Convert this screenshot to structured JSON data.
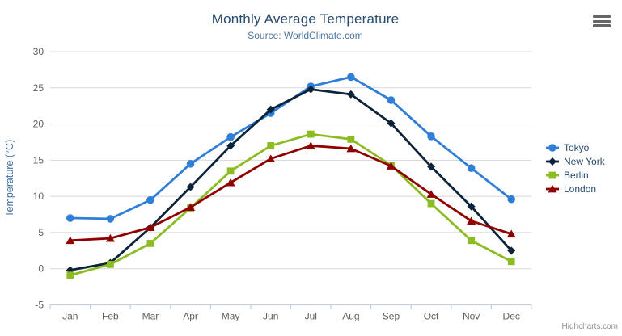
{
  "chart": {
    "credit": "Highcharts.com",
    "export_menu_icon": "hamburger-icon",
    "colors": {
      "grid": "#d8d8d8",
      "axis_line": "#c0d0e0",
      "tick_label": "#606060",
      "title": "#274b6d",
      "subtitle": "#4d759e",
      "y_axis_title": "#4572a7",
      "legend_text": "#274b6d",
      "credit_text": "#909090"
    }
  },
  "chart_data": {
    "type": "line",
    "title": "Monthly Average Temperature",
    "subtitle": "Source: WorldClimate.com",
    "xlabel": "",
    "ylabel": "Temperature (°C)",
    "categories": [
      "Jan",
      "Feb",
      "Mar",
      "Apr",
      "May",
      "Jun",
      "Jul",
      "Aug",
      "Sep",
      "Oct",
      "Nov",
      "Dec"
    ],
    "ylim": [
      -5,
      30
    ],
    "ytick_interval": 5,
    "grid": true,
    "legend_position": "right",
    "series": [
      {
        "name": "Tokyo",
        "color": "#2f7ed8",
        "marker": "circle",
        "values": [
          7.0,
          6.9,
          9.5,
          14.5,
          18.2,
          21.5,
          25.2,
          26.5,
          23.3,
          18.3,
          13.9,
          9.6
        ]
      },
      {
        "name": "New York",
        "color": "#0d233a",
        "marker": "diamond",
        "values": [
          -0.2,
          0.8,
          5.7,
          11.3,
          17.0,
          22.0,
          24.8,
          24.1,
          20.1,
          14.1,
          8.6,
          2.5
        ]
      },
      {
        "name": "Berlin",
        "color": "#8bbc21",
        "marker": "square",
        "values": [
          -0.9,
          0.6,
          3.5,
          8.4,
          13.5,
          17.0,
          18.6,
          17.9,
          14.3,
          9.0,
          3.9,
          1.0
        ]
      },
      {
        "name": "London",
        "color": "#910000",
        "marker": "triangle",
        "values": [
          3.9,
          4.2,
          5.7,
          8.5,
          11.9,
          15.2,
          17.0,
          16.6,
          14.2,
          10.3,
          6.6,
          4.8
        ]
      }
    ]
  }
}
